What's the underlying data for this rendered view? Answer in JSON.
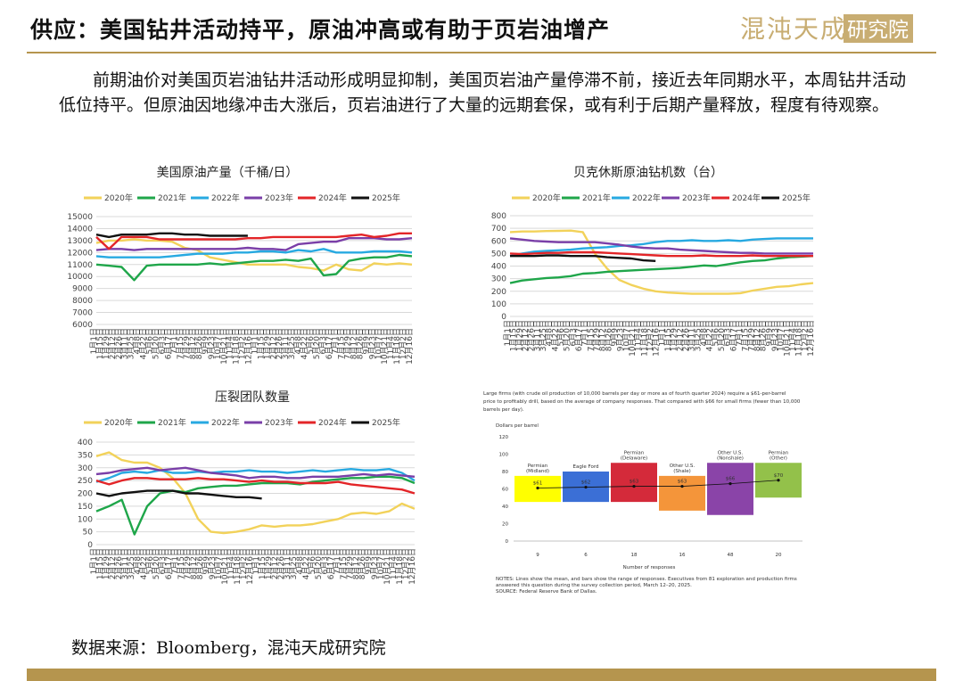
{
  "header": {
    "title": "供应：美国钻井活动持平，原油冲高或有助于页岩油增产",
    "logo_text": "混沌天成研究院"
  },
  "paragraph": "前期油价对美国页岩油钻井活动形成明显抑制，美国页岩油产量停滞不前，接近去年同期水平，本周钻井活动低位持平。但原油因地缘冲击大涨后，页岩油进行了大量的远期套保，或有利于后期产量释放，程度有待观察。",
  "source_note": "数据来源：Bloomberg，混沌天成研究院",
  "colors": {
    "gold": "#b5954e",
    "y2020": "#f2d25a",
    "y2021": "#1fa64a",
    "y2022": "#27a9e1",
    "y2023": "#7a3fa8",
    "y2024": "#e32528",
    "y2025": "#111111"
  },
  "chart_data": [
    {
      "type": "line",
      "title": "美国原油产量（千桶/日）",
      "x": [
        "1月1日",
        "1月15日",
        "1月29日",
        "2月12日",
        "2月26日",
        "3月11日",
        "3月25日",
        "4月8日",
        "4月22日",
        "5月6日",
        "5月20日",
        "6月3日",
        "6月17日",
        "7月1日",
        "7月15日",
        "7月29日",
        "8月12日",
        "8月26日",
        "9月9日",
        "9月23日",
        "10月7日",
        "10月21日",
        "11月4日",
        "11月18日",
        "12月2日",
        "12月16日"
      ],
      "x_tick_labels": [
        "1月1日",
        "1月15日",
        "1月29日",
        "2月12日",
        "2月26日",
        "3月11日",
        "3月25日",
        "4月8日",
        "4月22日",
        "5月6日",
        "5月20日",
        "6月3日",
        "6月17日",
        "7月1日",
        "7月15日",
        "7月29日",
        "8月12日",
        "8月26日",
        "9月9日",
        "9月23日",
        "10月7日",
        "10月21日",
        "11月4日",
        "11月18日",
        "12月2日",
        "12月16日",
        "1月1日",
        "1月15日",
        "1月29日",
        "2月12日",
        "2月26日",
        "3月11日",
        "3月25日",
        "4月8日",
        "4月22日",
        "5月6日",
        "5月20日",
        "6月3日",
        "6月17日",
        "7月1日",
        "7月15日",
        "7月29日",
        "8月12日",
        "8月26日",
        "9月9日",
        "9月23日",
        "10月7日",
        "10月21日",
        "11月4日",
        "11月18日",
        "12月2日",
        "12月16日"
      ],
      "ylim": [
        6000,
        15000
      ],
      "yticks": [
        6000,
        7000,
        8000,
        9000,
        10000,
        11000,
        12000,
        13000,
        14000,
        15000
      ],
      "series": [
        {
          "name": "2020年",
          "values": [
            12800,
            13000,
            13000,
            13100,
            13000,
            13000,
            12900,
            12400,
            12200,
            11600,
            11400,
            11200,
            11000,
            11000,
            11000,
            11000,
            10800,
            10700,
            10500,
            11000,
            10600,
            10500,
            11100,
            11000,
            11100,
            11000
          ]
        },
        {
          "name": "2021年",
          "values": [
            11000,
            10900,
            10800,
            9700,
            10900,
            11000,
            11000,
            11000,
            11000,
            11100,
            11000,
            11100,
            11200,
            11300,
            11300,
            11400,
            11300,
            11500,
            10100,
            10200,
            11300,
            11500,
            11600,
            11600,
            11800,
            11700
          ]
        },
        {
          "name": "2022年",
          "values": [
            11700,
            11600,
            11600,
            11600,
            11600,
            11600,
            11700,
            11800,
            11900,
            11900,
            11900,
            12000,
            12000,
            12100,
            12100,
            12000,
            12200,
            12100,
            12300,
            12000,
            12000,
            12000,
            12100,
            12100,
            12100,
            12000
          ]
        },
        {
          "name": "2023年",
          "values": [
            12200,
            12300,
            12300,
            12200,
            12300,
            12300,
            12300,
            12300,
            12300,
            12300,
            12300,
            12300,
            12400,
            12300,
            12300,
            12200,
            12700,
            12800,
            12900,
            12900,
            13200,
            13200,
            13200,
            13100,
            13100,
            13200
          ]
        },
        {
          "name": "2024年",
          "values": [
            13300,
            12300,
            13300,
            13300,
            13300,
            13100,
            13100,
            13100,
            13100,
            13100,
            13100,
            13100,
            13200,
            13200,
            13300,
            13300,
            13300,
            13300,
            13300,
            13300,
            13400,
            13500,
            13300,
            13400,
            13600,
            13600
          ]
        },
        {
          "name": "2025年",
          "values": [
            13500,
            13300,
            13500,
            13500,
            13500,
            13600,
            13600,
            13500,
            13500,
            13400,
            13400,
            13400,
            13400,
            null,
            null,
            null,
            null,
            null,
            null,
            null,
            null,
            null,
            null,
            null,
            null,
            null
          ]
        }
      ]
    },
    {
      "type": "line",
      "title": "贝克休斯原油钻机数（台）",
      "x": [
        "1月1日",
        "1月15日",
        "1月29日",
        "2月12日",
        "2月26日",
        "3月11日",
        "3月25日",
        "4月8日",
        "4月22日",
        "5月6日",
        "5月20日",
        "6月3日",
        "6月17日",
        "7月1日",
        "7月15日",
        "7月29日",
        "8月12日",
        "8月26日",
        "9月9日",
        "9月23日",
        "10月7日",
        "10月21日",
        "11月4日",
        "11月18日",
        "12月2日",
        "12月16日"
      ],
      "x_tick_labels": [
        "1月1日",
        "1月15日",
        "1月29日",
        "2月12日",
        "2月26日",
        "3月11日",
        "3月25日",
        "4月8日",
        "4月22日",
        "5月6日",
        "5月20日",
        "6月3日",
        "6月17日",
        "7月1日",
        "7月15日",
        "7月29日",
        "8月12日",
        "8月26日",
        "9月9日",
        "9月23日",
        "10月7日",
        "10月21日",
        "11月4日",
        "11月18日",
        "12月2日",
        "12月16日",
        "1月1日",
        "1月15日",
        "1月29日",
        "2月12日",
        "2月26日",
        "3月11日",
        "3月25日",
        "4月8日",
        "4月22日",
        "5月6日",
        "5月20日",
        "6月3日",
        "6月17日",
        "7月1日",
        "7月15日",
        "7月29日",
        "8月12日",
        "8月26日",
        "9月9日",
        "9月23日",
        "10月7日",
        "10月21日",
        "11月4日",
        "11月18日",
        "12月2日",
        "12月16日"
      ],
      "ylim": [
        0,
        800
      ],
      "yticks": [
        0,
        100,
        200,
        300,
        400,
        500,
        600,
        700,
        800
      ],
      "series": [
        {
          "name": "2020年",
          "values": [
            670,
            675,
            675,
            678,
            680,
            682,
            670,
            500,
            380,
            290,
            250,
            220,
            200,
            190,
            185,
            180,
            180,
            180,
            180,
            185,
            205,
            220,
            235,
            240,
            255,
            265
          ]
        },
        {
          "name": "2021年",
          "values": [
            265,
            285,
            295,
            305,
            310,
            320,
            340,
            345,
            355,
            360,
            365,
            370,
            375,
            380,
            385,
            395,
            405,
            400,
            415,
            430,
            440,
            445,
            460,
            470,
            475,
            480
          ]
        },
        {
          "name": "2022年",
          "values": [
            480,
            500,
            515,
            520,
            525,
            530,
            540,
            545,
            550,
            560,
            565,
            575,
            590,
            600,
            600,
            605,
            600,
            600,
            605,
            600,
            610,
            615,
            620,
            620,
            620,
            620
          ]
        },
        {
          "name": "2023年",
          "values": [
            620,
            610,
            600,
            595,
            590,
            590,
            590,
            590,
            580,
            570,
            555,
            545,
            540,
            540,
            530,
            525,
            520,
            515,
            510,
            505,
            505,
            500,
            500,
            500,
            500,
            500
          ]
        },
        {
          "name": "2024年",
          "values": [
            500,
            495,
            500,
            505,
            505,
            510,
            510,
            510,
            505,
            500,
            495,
            490,
            485,
            480,
            480,
            480,
            485,
            480,
            480,
            480,
            485,
            480,
            480,
            480,
            480,
            480
          ]
        },
        {
          "name": "2025年",
          "values": [
            480,
            480,
            480,
            485,
            485,
            480,
            480,
            480,
            470,
            465,
            460,
            445,
            440,
            null,
            null,
            null,
            null,
            null,
            null,
            null,
            null,
            null,
            null,
            null,
            null,
            null
          ]
        }
      ]
    },
    {
      "type": "line",
      "title": "压裂团队数量",
      "x": [
        "1月1日",
        "1月15日",
        "1月29日",
        "2月12日",
        "2月26日",
        "3月11日",
        "3月25日",
        "4月8日",
        "4月22日",
        "5月6日",
        "5月20日",
        "6月3日",
        "6月17日",
        "7月1日",
        "7月15日",
        "7月29日",
        "8月12日",
        "8月26日",
        "9月9日",
        "9月23日",
        "10月7日",
        "10月21日",
        "11月4日",
        "11月18日",
        "12月2日",
        "12月16日"
      ],
      "x_tick_labels": [
        "1月1日",
        "1月15日",
        "1月29日",
        "2月12日",
        "2月26日",
        "3月11日",
        "3月25日",
        "4月8日",
        "4月22日",
        "5月6日",
        "5月20日",
        "6月3日",
        "6月17日",
        "7月1日",
        "7月15日",
        "7月29日",
        "8月12日",
        "8月26日",
        "9月9日",
        "9月23日",
        "10月7日",
        "10月21日",
        "11月4日",
        "11月18日",
        "12月2日",
        "12月16日",
        "1月1日",
        "1月15日",
        "1月29日",
        "2月12日",
        "2月26日",
        "3月11日",
        "3月25日",
        "4月8日",
        "4月22日",
        "5月6日",
        "5月20日",
        "6月3日",
        "6月17日",
        "7月1日",
        "7月15日",
        "7月29日",
        "8月12日",
        "8月26日",
        "9月9日",
        "9月23日",
        "10月7日",
        "10月21日",
        "11月4日",
        "11月18日",
        "12月2日",
        "12月16日"
      ],
      "ylim": [
        0,
        400
      ],
      "yticks": [
        0,
        50,
        100,
        150,
        200,
        250,
        300,
        350,
        400
      ],
      "series": [
        {
          "name": "2020年",
          "values": [
            345,
            360,
            330,
            320,
            320,
            300,
            260,
            200,
            100,
            50,
            45,
            50,
            60,
            75,
            70,
            75,
            75,
            80,
            90,
            100,
            120,
            125,
            120,
            130,
            160,
            140
          ]
        },
        {
          "name": "2021年",
          "values": [
            130,
            150,
            175,
            40,
            150,
            200,
            210,
            205,
            220,
            225,
            230,
            230,
            235,
            240,
            240,
            240,
            235,
            245,
            250,
            255,
            260,
            260,
            265,
            265,
            260,
            240
          ]
        },
        {
          "name": "2022年",
          "values": [
            245,
            260,
            280,
            285,
            280,
            290,
            280,
            280,
            285,
            280,
            285,
            285,
            290,
            285,
            285,
            280,
            285,
            290,
            285,
            290,
            295,
            290,
            290,
            295,
            280,
            250
          ]
        },
        {
          "name": "2023年",
          "values": [
            275,
            280,
            290,
            295,
            300,
            290,
            295,
            300,
            290,
            280,
            275,
            270,
            260,
            265,
            265,
            260,
            260,
            265,
            265,
            265,
            270,
            275,
            270,
            275,
            270,
            265
          ]
        },
        {
          "name": "2024年",
          "values": [
            250,
            235,
            250,
            260,
            260,
            255,
            255,
            255,
            260,
            255,
            255,
            250,
            245,
            250,
            245,
            245,
            240,
            240,
            240,
            245,
            235,
            230,
            225,
            220,
            215,
            200
          ]
        },
        {
          "name": "2025年",
          "values": [
            200,
            190,
            200,
            205,
            210,
            210,
            210,
            200,
            200,
            195,
            190,
            185,
            185,
            180,
            null,
            null,
            null,
            null,
            null,
            null,
            null,
            null,
            null,
            null,
            null,
            null
          ]
        }
      ]
    },
    {
      "type": "bar",
      "title": "",
      "note_top": "Large firms (with crude oil production of 10,000 barrels per day or more as of fourth quarter 2024) require a $61-per-barrel price to profitably drill, based on the average of company responses. That compared with $66 for small firms (fewer than 10,000 barrels per day).",
      "ylabel": "Dollars per barrel",
      "xlabel": "Number of responses",
      "ylim": [
        0,
        120
      ],
      "yticks": [
        0,
        10,
        20,
        30,
        40,
        50,
        60,
        70,
        80,
        90,
        100,
        110,
        120
      ],
      "categories": [
        "Permian (Midland)",
        "Eagle Ford",
        "Permian (Delaware)",
        "Other U.S. (Shale)",
        "Other U.S. (Nonshale)",
        "Permian (Other)"
      ],
      "responses": [
        "9",
        "6",
        "18",
        "16",
        "48",
        "20"
      ],
      "mean": [
        61,
        62,
        63,
        63,
        66,
        70
      ],
      "mean_labels": [
        "$61",
        "$62",
        "$63",
        "$63",
        "$66",
        "$70"
      ],
      "range_low": [
        45,
        45,
        45,
        35,
        30,
        50
      ],
      "range_high": [
        75,
        80,
        90,
        75,
        90,
        90
      ],
      "bar_colors": [
        "#ffff00",
        "#3b6fd6",
        "#d42a3a",
        "#f4953a",
        "#8a44a8",
        "#93c14a"
      ],
      "notes": "NOTES: Lines show the mean, and bars show the range of responses. Executives from 81 exploration and production firms answered this question during the survey collection period, March 12–20, 2025.",
      "source": "SOURCE: Federal Reserve Bank of Dallas."
    }
  ]
}
